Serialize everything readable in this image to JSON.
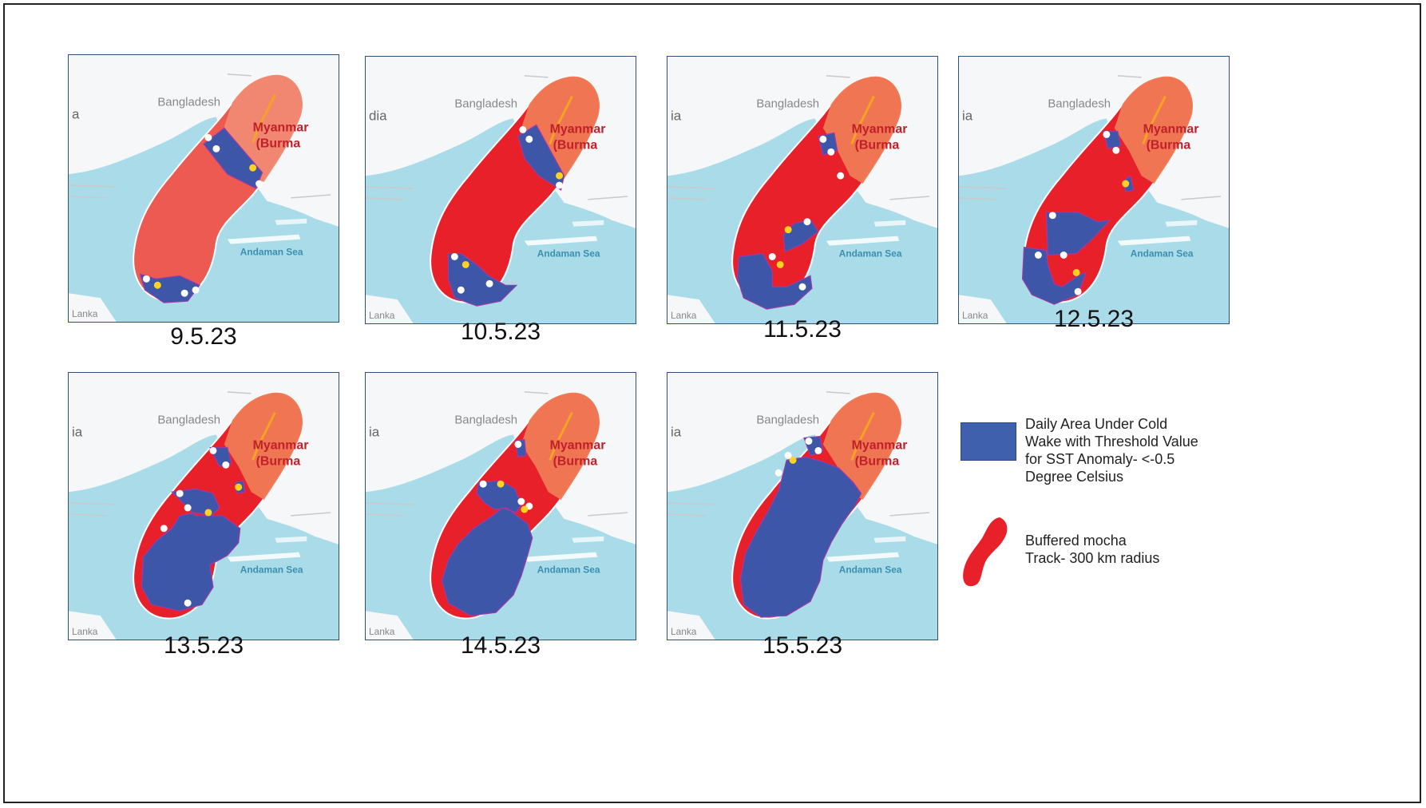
{
  "panels": [
    {
      "date": "9.5.23",
      "left_label": "a"
    },
    {
      "date": "10.5.23",
      "left_label": "dia"
    },
    {
      "date": "11.5.23",
      "left_label": "ia"
    },
    {
      "date": "12.5.23",
      "left_label": "ia"
    },
    {
      "date": "13.5.23",
      "left_label": "ia"
    },
    {
      "date": "14.5.23",
      "left_label": "ia"
    },
    {
      "date": "15.5.23",
      "left_label": "ia"
    }
  ],
  "map_labels": {
    "bangladesh": "Bangladesh",
    "myanmar": "Myanmar",
    "burma": "(Burma",
    "andaman": "Andaman Sea",
    "lanka": "Lanka"
  },
  "legend": {
    "cold_wake": {
      "line1": "Daily Area Under Cold",
      "line2": "Wake with Threshold Value",
      "line3": "for SST Anomaly- <-0.5",
      "line4": "Degree Celsius"
    },
    "track": {
      "line1": "Buffered mocha",
      "line2": "Track- 300 km radius"
    }
  },
  "colors": {
    "sea": "#a9dbe8",
    "land": "#f5f7f8",
    "track_red": "#e8202a",
    "track_pale": "#ec5a52",
    "land_overlay": "#f07a55",
    "cold_wake": "#3d56a8"
  }
}
